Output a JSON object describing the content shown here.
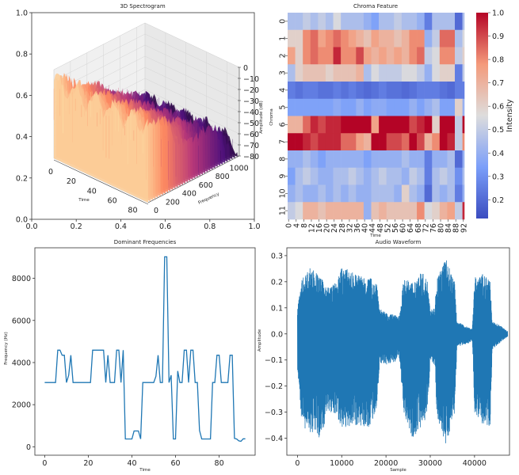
{
  "chart_data": [
    {
      "type": "surface",
      "title": "3D Spectrogram",
      "colormap": "magma",
      "outer_axes": {
        "xlim": [
          0,
          1
        ],
        "ylim": [
          0,
          1
        ],
        "xticks": [
          "0.0",
          "0.2",
          "0.4",
          "0.6",
          "0.8",
          "1.0"
        ],
        "yticks": [
          "0.0",
          "0.2",
          "0.4",
          "0.6",
          "0.8",
          "1.0"
        ]
      },
      "xlabel": "Time",
      "ylabel": "Frequency",
      "zlabel": "Amplitude (dB)",
      "xticks": [
        "0",
        "20",
        "40",
        "60",
        "80"
      ],
      "yticks": [
        "0",
        "200",
        "400",
        "600",
        "800",
        "1000"
      ],
      "zticks": [
        "0",
        "−10",
        "−20",
        "−30",
        "−40",
        "−50",
        "−60",
        "−70",
        "−80"
      ],
      "xlim": [
        0,
        92
      ],
      "ylim": [
        0,
        1100
      ],
      "zlim": [
        -80,
        0
      ]
    },
    {
      "type": "heatmap",
      "title": "Chroma Feature",
      "xlabel": "Time",
      "ylabel": "Chroma",
      "colormap": "coolwarm",
      "colorbar_label": "Intensity",
      "colorbar_ticks": [
        "0.2",
        "0.3",
        "0.4",
        "0.5",
        "0.6",
        "0.7",
        "0.8",
        "0.9",
        "1.0"
      ],
      "vmin": 0.12,
      "vmax": 1.0,
      "xticks": [
        "0",
        "4",
        "8",
        "12",
        "16",
        "20",
        "24",
        "28",
        "32",
        "36",
        "40",
        "44",
        "48",
        "52",
        "56",
        "60",
        "64",
        "68",
        "72",
        "76",
        "80",
        "84",
        "88",
        "92"
      ],
      "yticks": [
        "0",
        "1",
        "2",
        "3",
        "4",
        "5",
        "6",
        "7",
        "8",
        "9",
        "10",
        "11"
      ],
      "frames": 93,
      "block_width_frames": 4,
      "rows": [
        [
          0.45,
          0.45,
          0.5,
          0.45,
          0.5,
          0.45,
          0.55,
          0.45,
          0.45,
          0.45,
          0.4,
          0.35,
          0.45,
          0.45,
          0.5,
          0.45,
          0.45,
          0.4,
          0.25,
          0.45,
          0.45,
          0.45,
          0.2,
          0.45
        ],
        [
          0.6,
          0.6,
          0.8,
          0.85,
          0.75,
          0.8,
          0.85,
          0.8,
          0.75,
          0.7,
          0.65,
          0.75,
          0.7,
          0.7,
          0.65,
          0.7,
          0.8,
          0.8,
          0.4,
          0.5,
          0.85,
          0.85,
          0.45,
          0.55
        ],
        [
          0.75,
          0.6,
          0.8,
          0.85,
          0.8,
          0.8,
          0.95,
          0.8,
          0.8,
          0.9,
          0.75,
          0.7,
          0.75,
          0.7,
          0.75,
          0.7,
          0.8,
          0.85,
          0.5,
          0.55,
          0.8,
          0.8,
          0.5,
          0.6
        ],
        [
          0.45,
          0.6,
          0.65,
          0.65,
          0.65,
          0.6,
          0.65,
          0.65,
          0.65,
          0.7,
          0.45,
          0.55,
          0.5,
          0.5,
          0.5,
          0.55,
          0.55,
          0.5,
          0.4,
          0.55,
          0.6,
          0.6,
          0.25,
          0.5
        ],
        [
          0.25,
          0.22,
          0.25,
          0.25,
          0.22,
          0.22,
          0.25,
          0.22,
          0.25,
          0.22,
          0.2,
          0.22,
          0.25,
          0.22,
          0.22,
          0.2,
          0.22,
          0.25,
          0.25,
          0.25,
          0.22,
          0.2,
          0.25,
          0.25
        ],
        [
          0.35,
          0.35,
          0.35,
          0.35,
          0.35,
          0.35,
          0.38,
          0.35,
          0.35,
          0.4,
          0.35,
          0.38,
          0.38,
          0.35,
          0.35,
          0.35,
          0.4,
          0.35,
          0.4,
          0.45,
          0.35,
          0.35,
          0.6,
          0.4
        ],
        [
          0.7,
          0.7,
          0.85,
          0.95,
          0.9,
          0.95,
          0.95,
          1.0,
          1.0,
          1.0,
          1.0,
          0.75,
          1.0,
          1.0,
          1.0,
          1.0,
          0.9,
          0.95,
          1.0,
          0.6,
          1.0,
          1.0,
          0.5,
          1.0
        ],
        [
          1.0,
          1.0,
          0.95,
          0.9,
          0.95,
          0.95,
          0.95,
          0.85,
          0.85,
          0.75,
          0.7,
          1.0,
          1.0,
          0.9,
          0.9,
          0.85,
          1.0,
          0.9,
          0.7,
          0.8,
          1.0,
          0.95,
          0.5,
          0.8
        ],
        [
          0.4,
          0.4,
          0.45,
          0.4,
          0.35,
          0.4,
          0.4,
          0.4,
          0.4,
          0.4,
          0.35,
          0.4,
          0.4,
          0.4,
          0.4,
          0.45,
          0.4,
          0.4,
          0.25,
          0.4,
          0.4,
          0.45,
          0.2,
          0.4
        ],
        [
          0.35,
          0.45,
          0.5,
          0.45,
          0.4,
          0.4,
          0.45,
          0.45,
          0.5,
          0.45,
          0.4,
          0.45,
          0.5,
          0.45,
          0.45,
          0.4,
          0.5,
          0.45,
          0.25,
          0.45,
          0.5,
          0.45,
          0.3,
          0.45
        ],
        [
          0.4,
          0.45,
          0.4,
          0.4,
          0.45,
          0.4,
          0.45,
          0.4,
          0.45,
          0.4,
          0.4,
          0.45,
          0.45,
          0.45,
          0.4,
          0.6,
          0.45,
          0.4,
          0.2,
          0.45,
          0.4,
          0.45,
          0.25,
          0.4
        ],
        [
          0.5,
          0.55,
          0.7,
          0.7,
          0.65,
          0.7,
          0.7,
          0.7,
          0.7,
          0.7,
          0.4,
          0.65,
          0.7,
          0.65,
          0.65,
          0.65,
          0.65,
          0.8,
          0.55,
          0.6,
          0.7,
          0.75,
          0.5,
          0.95
        ]
      ]
    },
    {
      "type": "line",
      "title": "Dominant Frequencies",
      "xlabel": "Time",
      "ylabel": "Frequency (Hz)",
      "xticks": [
        0,
        20,
        40,
        60,
        80
      ],
      "yticks": [
        0,
        2000,
        4000,
        6000,
        8000
      ],
      "xlim": [
        -4.5,
        96.5
      ],
      "ylim": [
        -400,
        9450
      ],
      "color": "#1f77b4",
      "y": [
        3050,
        3050,
        3050,
        3050,
        3050,
        3050,
        4590,
        4590,
        4350,
        4350,
        3050,
        3400,
        4350,
        3050,
        3050,
        3050,
        3050,
        3050,
        3050,
        3050,
        3050,
        3050,
        4590,
        4590,
        4590,
        4590,
        4590,
        4590,
        3050,
        4350,
        3050,
        3050,
        3050,
        4590,
        4590,
        3050,
        4590,
        370,
        370,
        370,
        370,
        750,
        750,
        750,
        370,
        3050,
        3050,
        3050,
        3050,
        3050,
        3050,
        3350,
        4350,
        3050,
        3050,
        9020,
        9020,
        3050,
        3400,
        370,
        370,
        3600,
        3050,
        3050,
        4590,
        4590,
        3050,
        4590,
        4590,
        3050,
        3050,
        780,
        370,
        370,
        370,
        370,
        370,
        3050,
        3050,
        4350,
        4350,
        3050,
        3050,
        3050,
        3050,
        4350,
        4350,
        400,
        370,
        280,
        260,
        380,
        380
      ]
    },
    {
      "type": "line",
      "title": "Audio Waveform",
      "xlabel": "Sample",
      "ylabel": "Amplitude",
      "xticks": [
        0,
        10000,
        20000,
        30000,
        40000
      ],
      "yticks": [
        -0.4,
        -0.3,
        -0.2,
        -0.1,
        0.0,
        0.1,
        0.2,
        0.3
      ],
      "xlim": [
        -2400,
        47900
      ],
      "ylim": [
        -0.465,
        0.33
      ],
      "color": "#1f77b4",
      "envelope": {
        "sample": [
          0,
          1000,
          3000,
          5000,
          7000,
          9000,
          10000,
          13000,
          16000,
          18000,
          18500,
          20000,
          23000,
          24000,
          26000,
          28000,
          29500,
          30000,
          31000,
          31500,
          33500,
          35500,
          36000,
          38000,
          39500,
          40000,
          42000,
          43500,
          44000,
          46000,
          47500
        ],
        "max": [
          0.1,
          0.21,
          0.26,
          0.22,
          0.18,
          0.2,
          0.26,
          0.23,
          0.22,
          0.2,
          0.1,
          0.08,
          0.07,
          0.21,
          0.2,
          0.24,
          0.2,
          0.1,
          0.1,
          0.22,
          0.29,
          0.2,
          0.05,
          0.03,
          0.02,
          0.22,
          0.23,
          0.2,
          0.05,
          0.03,
          0.01
        ],
        "min": [
          -0.14,
          -0.36,
          -0.38,
          -0.4,
          -0.3,
          -0.32,
          -0.36,
          -0.35,
          -0.36,
          -0.3,
          -0.11,
          -0.12,
          -0.1,
          -0.3,
          -0.4,
          -0.36,
          -0.3,
          -0.1,
          -0.12,
          -0.32,
          -0.43,
          -0.3,
          -0.05,
          -0.04,
          -0.03,
          -0.3,
          -0.35,
          -0.36,
          -0.06,
          -0.03,
          -0.01
        ]
      }
    }
  ]
}
